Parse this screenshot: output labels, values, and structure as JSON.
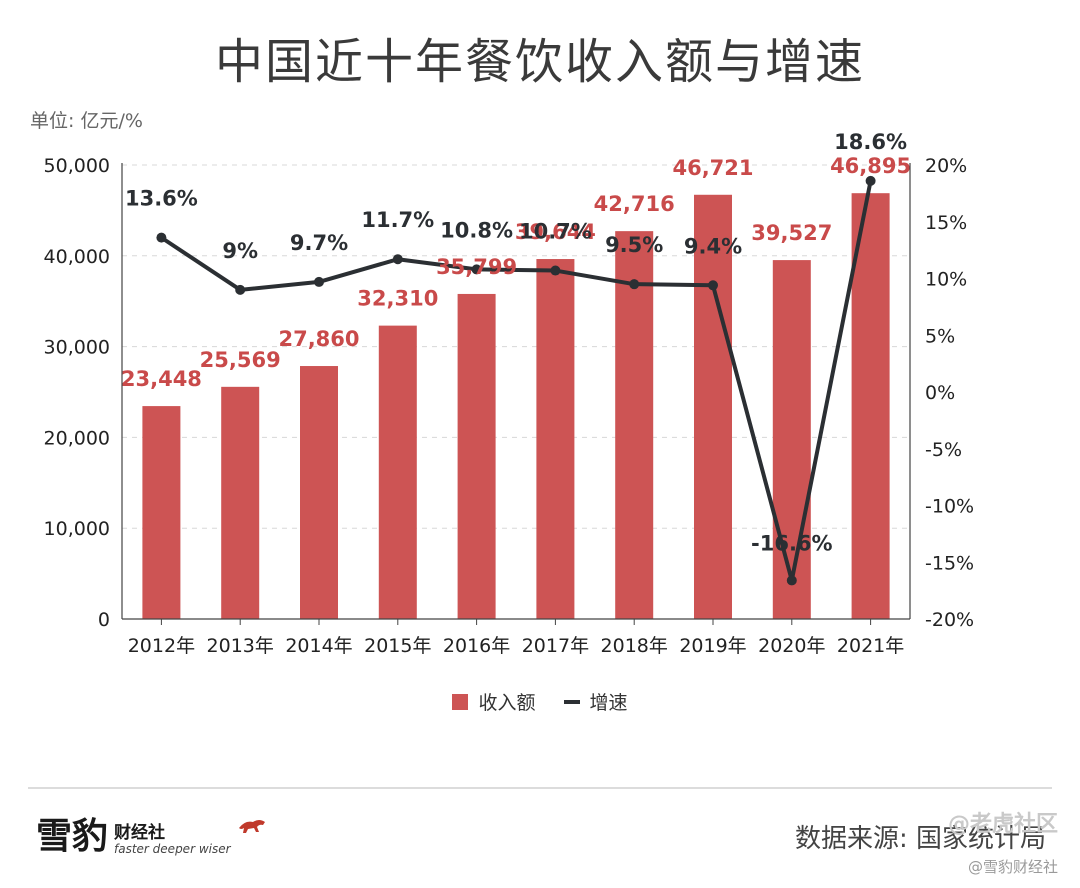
{
  "title": "中国近十年餐饮收入额与增速",
  "unit_label": "单位: 亿元/%",
  "legend": {
    "bar_label": "收入额",
    "line_label": "增速"
  },
  "footer": {
    "logo_main": "雪豹",
    "logo_name": "财经社",
    "logo_tagline": "faster deeper wiser",
    "source": "数据来源: 国家统计局",
    "watermark_top": "@老虎社区",
    "watermark_bottom": "@雪豹财经社"
  },
  "colors": {
    "bar": "#cd5454",
    "line": "#2b2f33",
    "bar_label": "#c94a4a",
    "grid": "#d8d8d8"
  },
  "chart_data": {
    "type": "bar",
    "categories": [
      "2012年",
      "2013年",
      "2014年",
      "2015年",
      "2016年",
      "2017年",
      "2018年",
      "2019年",
      "2020年",
      "2021年"
    ],
    "series": [
      {
        "name": "收入额",
        "type": "bar",
        "axis": "left",
        "values": [
          23448,
          25569,
          27860,
          32310,
          35799,
          39644,
          42716,
          46721,
          39527,
          46895
        ],
        "labels": [
          "23,448",
          "25,569",
          "27,860",
          "32,310",
          "35,799",
          "39,644",
          "42,716",
          "46,721",
          "39,527",
          "46,895"
        ]
      },
      {
        "name": "增速",
        "type": "line",
        "axis": "right",
        "values": [
          13.6,
          9,
          9.7,
          11.7,
          10.8,
          10.7,
          9.5,
          9.4,
          -16.6,
          18.6
        ],
        "labels": [
          "13.6%",
          "9%",
          "9.7%",
          "11.7%",
          "10.8%",
          "10.7%",
          "9.5%",
          "9.4%",
          "-16.6%",
          "18.6%"
        ]
      }
    ],
    "y_left": {
      "range": [
        0,
        50000
      ],
      "ticks": [
        0,
        10000,
        20000,
        30000,
        40000,
        50000
      ],
      "tick_labels": [
        "0",
        "10,000",
        "20,000",
        "30,000",
        "40,000",
        "50,000"
      ]
    },
    "y_right": {
      "range": [
        -20,
        20
      ],
      "ticks": [
        -20,
        -15,
        -10,
        -5,
        0,
        5,
        10,
        15,
        20
      ],
      "tick_labels": [
        "-20%",
        "-15%",
        "-10%",
        "-5%",
        "0%",
        "5%",
        "10%",
        "15%",
        "20%"
      ]
    },
    "grid": "dashed horizontal",
    "legend_position": "bottom-center"
  }
}
